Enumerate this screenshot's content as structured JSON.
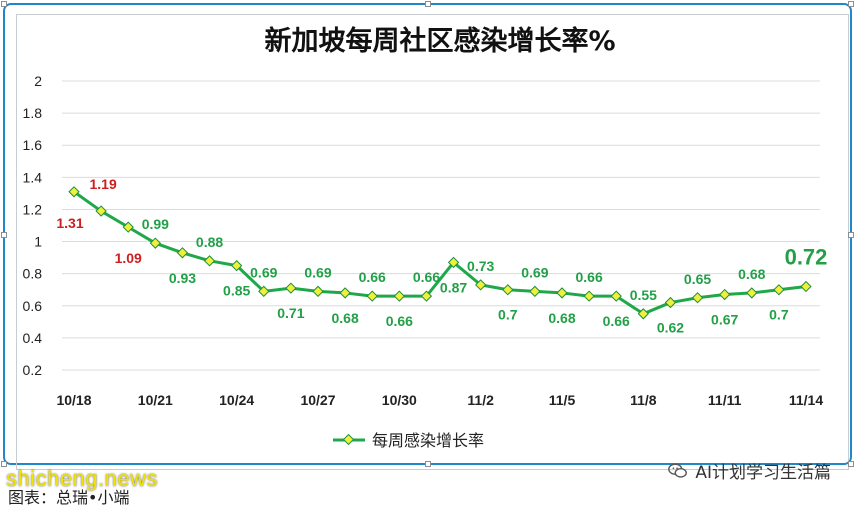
{
  "chart_data": {
    "type": "line",
    "title": "新加坡每周社区感染增长率%",
    "categories": [
      "10/18",
      "10/19",
      "10/20",
      "10/21",
      "10/22",
      "10/23",
      "10/24",
      "10/25",
      "10/26",
      "10/27",
      "10/28",
      "10/29",
      "10/30",
      "10/31",
      "11/1",
      "11/2",
      "11/3",
      "11/4",
      "11/5",
      "11/6",
      "11/7",
      "11/8",
      "11/9",
      "11/10",
      "11/11",
      "11/12",
      "11/13",
      "11/14"
    ],
    "x_tick_labels": [
      "10/18",
      "10/21",
      "10/24",
      "10/27",
      "10/30",
      "11/2",
      "11/5",
      "11/8",
      "11/11",
      "11/14"
    ],
    "series": [
      {
        "name": "每周感染增长率",
        "values": [
          1.31,
          1.19,
          1.09,
          0.99,
          0.93,
          0.88,
          0.85,
          0.69,
          0.71,
          0.69,
          0.68,
          0.66,
          0.66,
          0.66,
          0.87,
          0.73,
          0.7,
          0.69,
          0.68,
          0.66,
          0.66,
          0.55,
          0.62,
          0.65,
          0.67,
          0.68,
          0.7,
          0.72
        ],
        "labels": [
          "1.31",
          "1.19",
          "1.09",
          "0.99",
          "0.93",
          "0.88",
          "0.85",
          "0.69",
          "0.71",
          "0.69",
          "0.68",
          "0.66",
          "0.66",
          "0.66",
          "0.87",
          "0.73",
          "0.7",
          "0.69",
          "0.68",
          "0.66",
          "0.66",
          "0.55",
          "0.62",
          "0.65",
          "0.67",
          "0.68",
          "0.7",
          "0.72"
        ]
      }
    ],
    "ylim": [
      0.2,
      2
    ],
    "y_ticks": [
      "0.2",
      "0.4",
      "0.6",
      "0.8",
      "1",
      "1.2",
      "1.4",
      "1.6",
      "1.8",
      "2"
    ],
    "grid": true,
    "legend": "bottom",
    "colors": {
      "line": "#1fa84a",
      "marker_fill": "#f0ef3a",
      "marker_stroke": "#1a8f3c",
      "label_high": "#cc1f1f",
      "label_normal": "#22a048",
      "grid": "#dcdcdc",
      "axis_text": "#222222"
    }
  },
  "footer": {
    "caption": "图表：总瑞•小端",
    "site": "shicheng.news",
    "brand": "AI计划学习生活篇"
  }
}
